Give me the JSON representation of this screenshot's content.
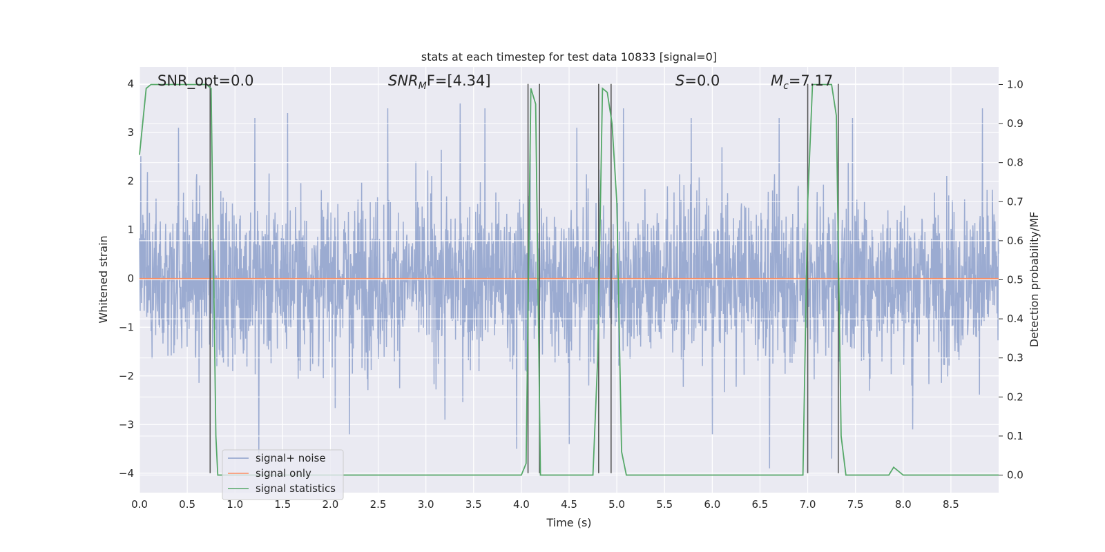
{
  "chart_data": {
    "type": "line",
    "title": "stats at each timestep for test data 10833 [signal=0]",
    "xlabel": "Time (s)",
    "ylabel": "Whitened strain",
    "y2label": "Detection probability/MF",
    "xlim": [
      0,
      9
    ],
    "ylim": [
      -4.4,
      4.35
    ],
    "y2lim": [
      -0.045,
      1.045
    ],
    "x_ticks": [
      0.0,
      0.5,
      1.0,
      1.5,
      2.0,
      2.5,
      3.0,
      3.5,
      4.0,
      4.5,
      5.0,
      5.5,
      6.0,
      6.5,
      7.0,
      7.5,
      8.0,
      8.5
    ],
    "x_tick_labels": [
      "0.0",
      "0.5",
      "1.0",
      "1.5",
      "2.0",
      "2.5",
      "3.0",
      "3.5",
      "4.0",
      "4.5",
      "5.0",
      "5.5",
      "6.0",
      "6.5",
      "7.0",
      "7.5",
      "8.0",
      "8.5"
    ],
    "y_ticks": [
      4,
      3,
      2,
      1,
      0,
      -1,
      -2,
      -3,
      -4
    ],
    "y_tick_labels": [
      "4",
      "3",
      "2",
      "1",
      "0",
      "−1",
      "−2",
      "−3",
      "−4"
    ],
    "y2_ticks": [
      1.0,
      0.9,
      0.8,
      0.7,
      0.6,
      0.5,
      0.4,
      0.3,
      0.2,
      0.1,
      0.0
    ],
    "y2_tick_labels": [
      "1.0",
      "0.9",
      "0.8",
      "0.7",
      "0.6",
      "0.5",
      "0.4",
      "0.3",
      "0.2",
      "0.1",
      "0.0"
    ],
    "grid": true,
    "legend": {
      "position": "lower-left",
      "entries": [
        "signal+ noise",
        "signal only",
        "signal statistics"
      ]
    },
    "annotations": {
      "snr_opt": "SNR_opt=0.0",
      "snr_mf_main": "SNR",
      "snr_mf_sub": "M",
      "snr_mf_rest": "F=[4.34]",
      "s_main": "S",
      "s_rest": "=0.0",
      "mc_main": "M",
      "mc_sub": "c",
      "mc_rest": "=7.17"
    },
    "series": [
      {
        "name": "signal+ noise",
        "color": "#8da0cb",
        "description_style": "dense noise trace",
        "noise_envelope": {
          "typical_min": -2.0,
          "typical_max": 2.0,
          "extreme_peaks": [
            [
              0.41,
              3.1
            ],
            [
              1.21,
              3.3
            ],
            [
              1.55,
              3.4
            ],
            [
              2.6,
              3.5
            ],
            [
              3.36,
              3.6
            ],
            [
              3.62,
              3.5
            ],
            [
              4.58,
              3.1
            ],
            [
              5.07,
              3.5
            ],
            [
              5.78,
              3.3
            ],
            [
              6.7,
              3.3
            ],
            [
              7.47,
              3.3
            ],
            [
              8.83,
              3.5
            ],
            [
              1.25,
              -3.6
            ],
            [
              2.2,
              -3.2
            ],
            [
              3.2,
              -2.9
            ],
            [
              3.95,
              -3.5
            ],
            [
              4.5,
              -3.4
            ],
            [
              6.0,
              -3.2
            ],
            [
              6.6,
              -3.9
            ],
            [
              7.25,
              -3.7
            ],
            [
              8.1,
              -3.1
            ]
          ]
        }
      },
      {
        "name": "signal only",
        "color": "#fc8d62",
        "x": [
          0.0,
          9.0
        ],
        "y": [
          0.0,
          0.0
        ]
      },
      {
        "name": "signal statistics",
        "color": "#55a868",
        "axis": "right",
        "x": [
          0.0,
          0.07,
          0.12,
          0.2,
          0.7,
          0.75,
          0.8,
          0.82,
          0.9,
          2.0,
          2.4,
          2.5,
          4.0,
          4.05,
          4.1,
          4.15,
          4.2,
          4.25,
          4.3,
          4.75,
          4.8,
          4.85,
          4.9,
          4.95,
          5.0,
          5.05,
          5.1,
          5.2,
          6.95,
          7.0,
          7.05,
          7.1,
          7.25,
          7.3,
          7.35,
          7.4,
          7.8,
          7.85,
          7.9,
          8.0,
          9.0
        ],
        "y": [
          0.82,
          0.99,
          1.0,
          1.0,
          1.0,
          0.99,
          0.1,
          0.0,
          0.0,
          0.0,
          0.0,
          0.0,
          0.0,
          0.03,
          0.99,
          0.95,
          0.0,
          0.0,
          0.0,
          0.0,
          0.3,
          0.99,
          0.98,
          0.9,
          0.7,
          0.06,
          0.0,
          0.0,
          0.0,
          0.7,
          1.0,
          1.0,
          1.0,
          0.92,
          0.1,
          0.0,
          0.0,
          0.0,
          0.02,
          0.0,
          0.0
        ]
      }
    ],
    "vertical_markers": {
      "color": "#555555",
      "x": [
        0.74,
        4.07,
        4.19,
        4.81,
        4.94,
        7.0,
        7.32
      ],
      "y_range": [
        -4.0,
        4.0
      ]
    }
  }
}
